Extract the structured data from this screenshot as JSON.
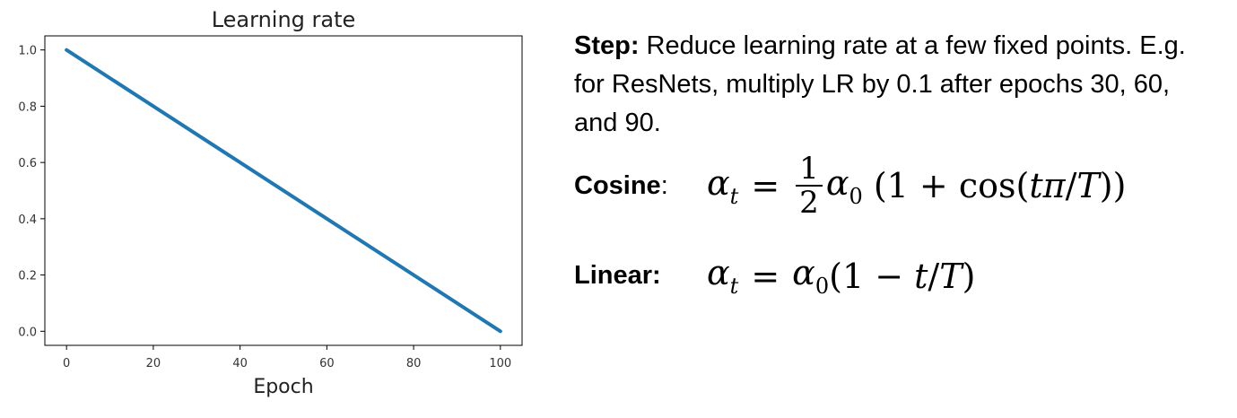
{
  "chart_data": {
    "type": "line",
    "title": "Learning rate",
    "xlabel": "Epoch",
    "ylabel": "",
    "xlim": [
      -5,
      105
    ],
    "ylim": [
      -0.05,
      1.05
    ],
    "x_ticks": [
      0,
      20,
      40,
      60,
      80,
      100
    ],
    "y_ticks": [
      0.0,
      0.2,
      0.4,
      0.6,
      0.8,
      1.0
    ],
    "x_tick_labels": [
      "0",
      "20",
      "40",
      "60",
      "80",
      "100"
    ],
    "y_tick_labels": [
      "0.0",
      "0.2",
      "0.4",
      "0.6",
      "0.8",
      "1.0"
    ],
    "grid": false,
    "series": [
      {
        "color": "#1f77b4",
        "x": [
          0,
          100
        ],
        "y": [
          1.0,
          0.0
        ]
      }
    ]
  },
  "text": {
    "step_label": "Step:",
    "step_body": " Reduce learning rate at a few fixed points. E.g. for ResNets, multiply LR by 0.1 after epochs 30, 60, and 90.",
    "cosine_label": "Cosine",
    "cosine_colon": ":",
    "linear_label": "Linear:"
  }
}
